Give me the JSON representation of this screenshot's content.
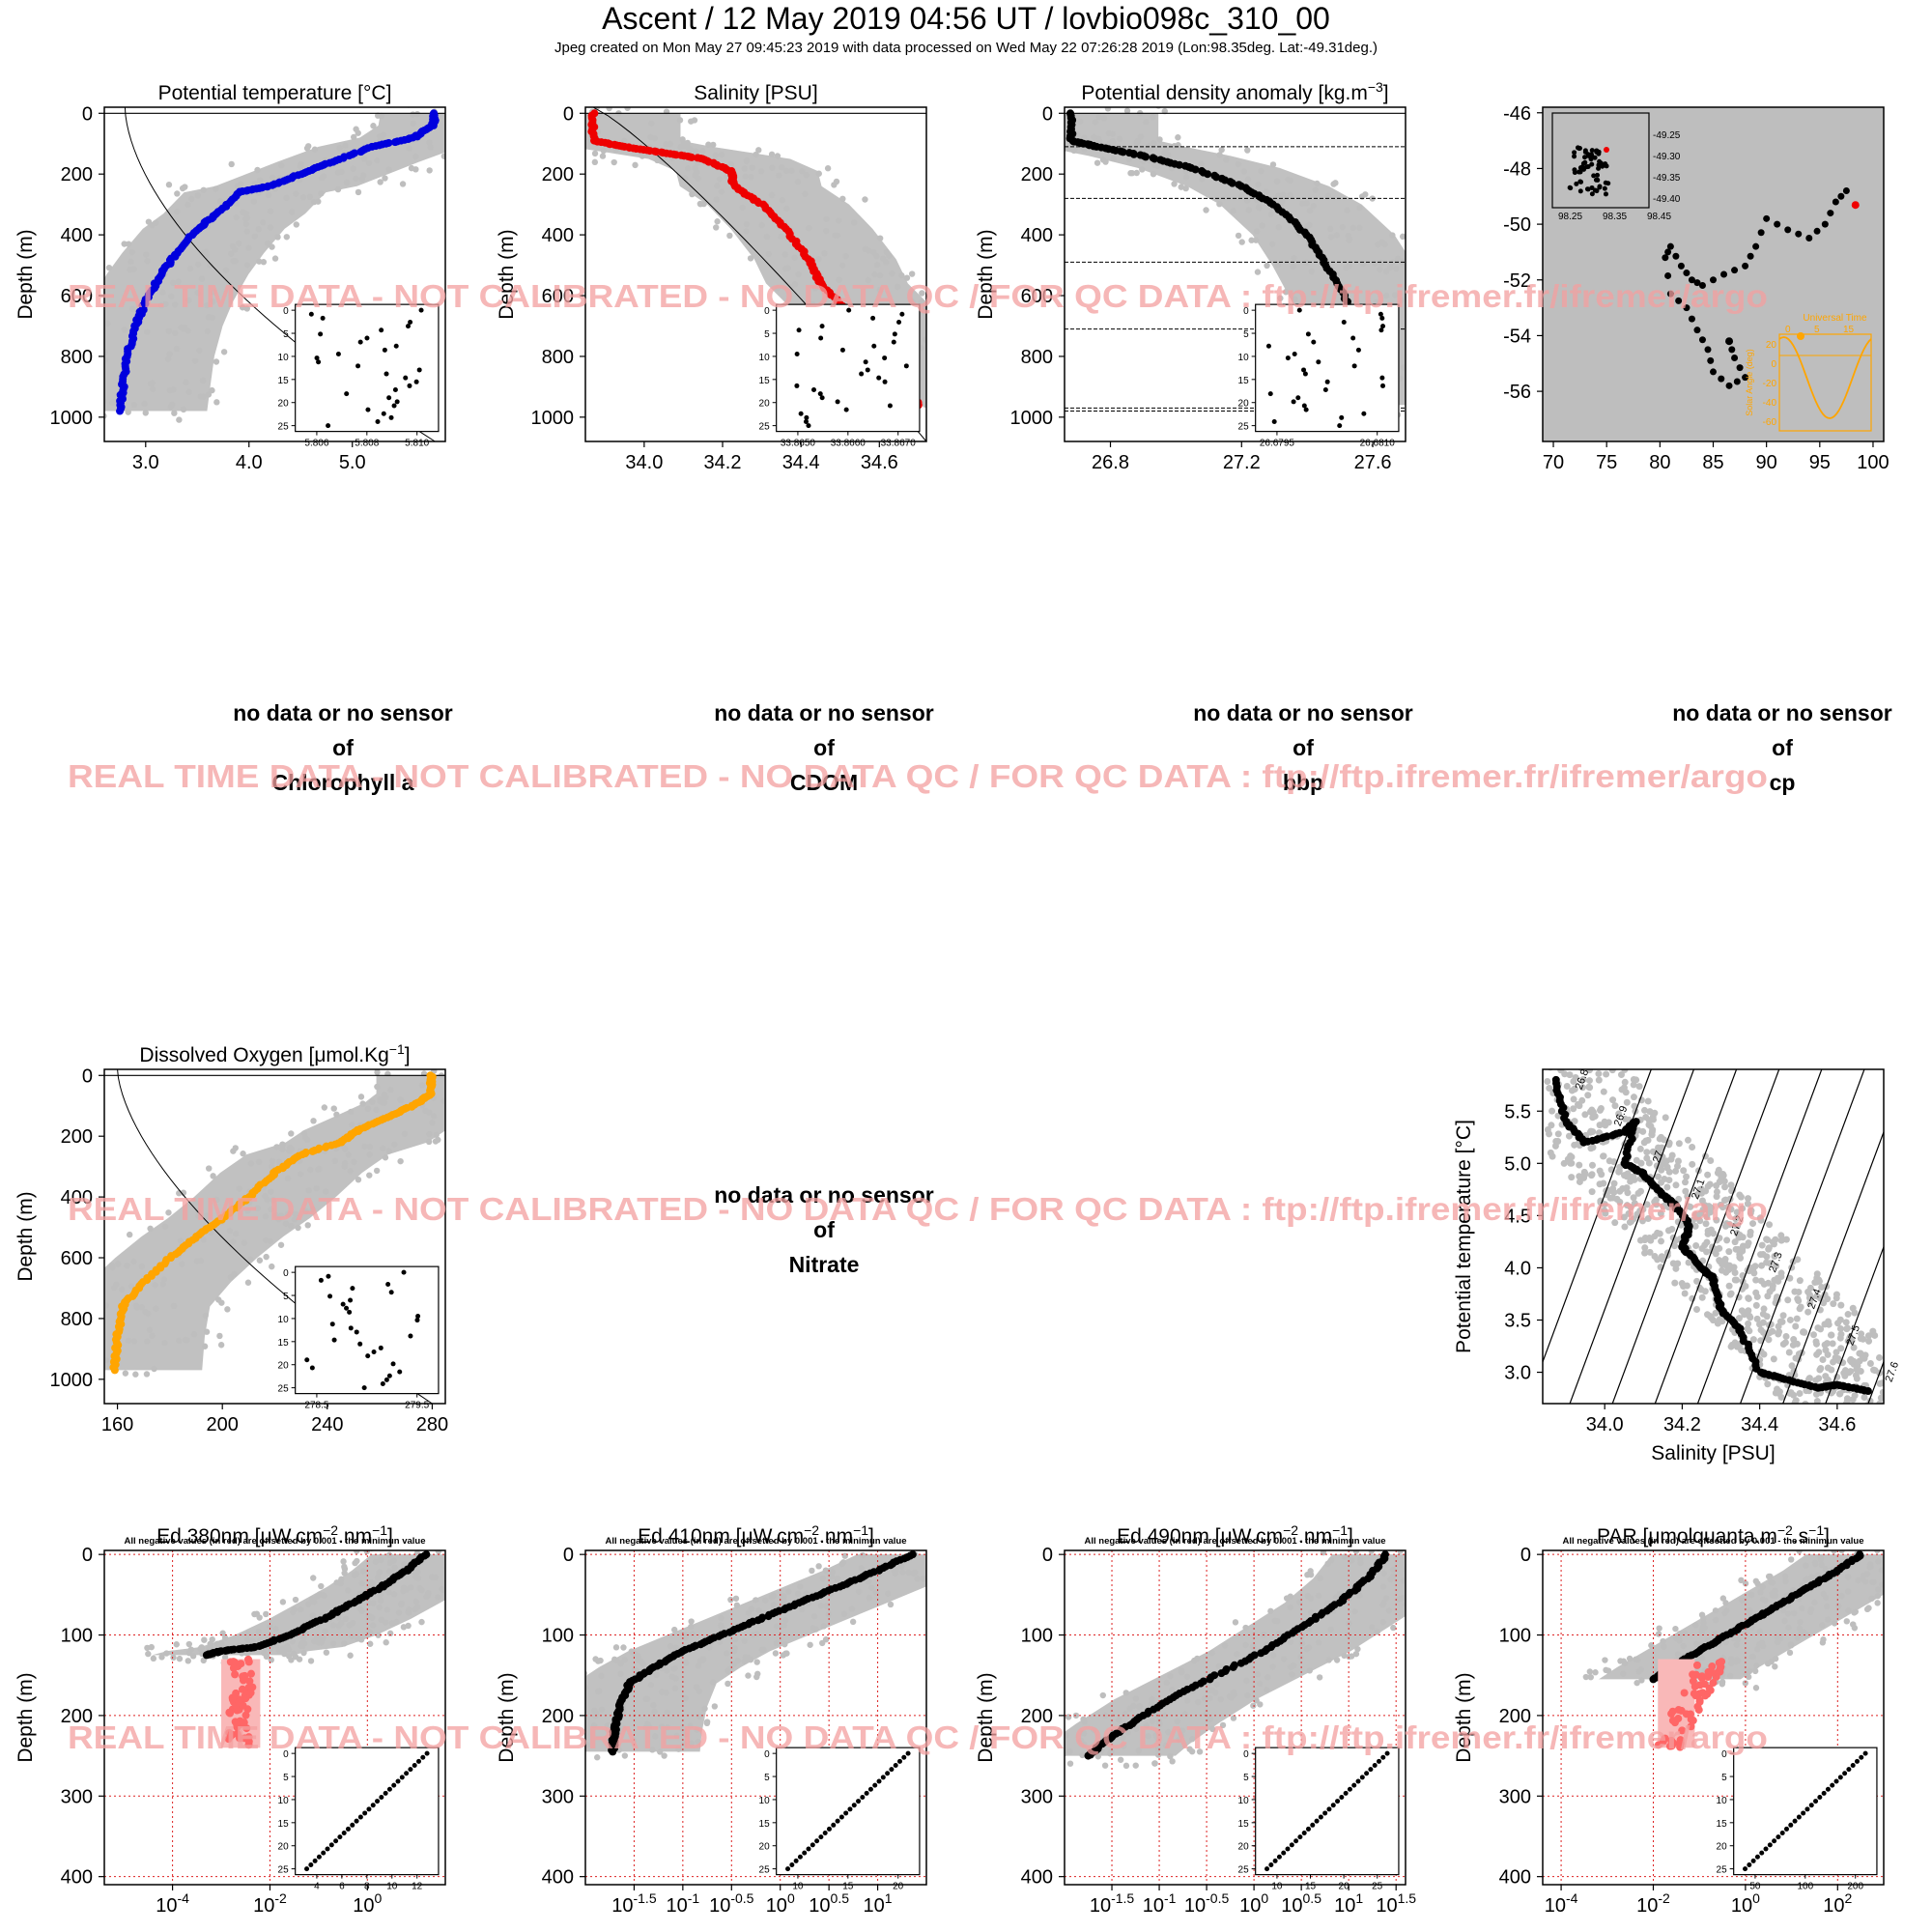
{
  "header": {
    "title": "Ascent / 12 May 2019 04:56 UT /  lovbio098c_310_00",
    "subtitle": "Jpeg created on Mon May 27 09:45:23 2019 with data processed on Wed May 22 07:26:28 2019 (Lon:98.35deg. Lat:-49.31deg.)"
  },
  "watermark": "REAL TIME DATA - NOT CALIBRATED - NO DATA QC   /  FOR QC DATA : ftp://ftp.ifremer.fr/ifremer/argo",
  "colors": {
    "background_panel": "#bebebe",
    "temperature": "#0000dd",
    "salinity": "#ee0000",
    "density": "#000000",
    "oxygen": "#ffa500",
    "negative": "#ff6666",
    "watermark": "#f4a0a0",
    "grid": "#dd2222"
  },
  "nodata": {
    "line1": "no data or no sensor",
    "line2": "of",
    "chlorophyll": "Chlorophyll a",
    "cdom": "CDOM",
    "bbp": "bbp",
    "cp": "cp",
    "nitrate": "Nitrate"
  },
  "chart_data": [
    {
      "id": "temperature",
      "type": "scatter",
      "title": "Potential temperature [°C]",
      "ylabel": "Depth (m)",
      "xlim": [
        2.6,
        5.9
      ],
      "ylim": [
        1080,
        -20
      ],
      "xticks": [
        "3.0",
        "4.0",
        "5.0"
      ],
      "xtick_values": [
        3.0,
        4.0,
        5.0
      ],
      "yticks": [
        "0",
        "200",
        "400",
        "600",
        "800",
        "1000"
      ],
      "ytick_values": [
        0,
        200,
        400,
        600,
        800,
        1000
      ],
      "profile": [
        [
          5.8,
          0
        ],
        [
          5.78,
          40
        ],
        [
          5.6,
          80
        ],
        [
          5.2,
          110
        ],
        [
          4.8,
          160
        ],
        [
          4.5,
          200
        ],
        [
          4.2,
          240
        ],
        [
          3.9,
          260
        ],
        [
          3.7,
          330
        ],
        [
          3.5,
          380
        ],
        [
          3.3,
          460
        ],
        [
          3.15,
          530
        ],
        [
          3.0,
          620
        ],
        [
          2.9,
          700
        ],
        [
          2.82,
          800
        ],
        [
          2.78,
          900
        ],
        [
          2.75,
          980
        ]
      ],
      "inset": {
        "xticks": [
          "5.806",
          "5.808",
          "5.810"
        ],
        "yticks": [
          "0",
          "5",
          "10",
          "15",
          "20",
          "25"
        ]
      }
    },
    {
      "id": "salinity",
      "type": "scatter",
      "title": "Salinity [PSU]",
      "ylabel": "Depth (m)",
      "xlim": [
        33.85,
        34.72
      ],
      "ylim": [
        1080,
        -20
      ],
      "xticks": [
        "34.0",
        "34.2",
        "34.4",
        "34.6"
      ],
      "xtick_values": [
        34.0,
        34.2,
        34.4,
        34.6
      ],
      "yticks": [
        "0",
        "200",
        "400",
        "600",
        "800",
        "1000"
      ],
      "ytick_values": [
        0,
        200,
        400,
        600,
        800,
        1000
      ],
      "profile": [
        [
          33.87,
          0
        ],
        [
          33.87,
          90
        ],
        [
          33.95,
          110
        ],
        [
          34.05,
          130
        ],
        [
          34.15,
          150
        ],
        [
          34.22,
          190
        ],
        [
          34.23,
          240
        ],
        [
          34.3,
          300
        ],
        [
          34.36,
          380
        ],
        [
          34.42,
          480
        ],
        [
          34.45,
          560
        ],
        [
          34.52,
          650
        ],
        [
          34.58,
          760
        ],
        [
          34.64,
          860
        ],
        [
          34.7,
          960
        ]
      ],
      "inset": {
        "xticks": [
          "33.8650",
          "33.8660",
          "33.8670"
        ],
        "yticks": [
          "0",
          "5",
          "10",
          "15",
          "20",
          "25"
        ]
      }
    },
    {
      "id": "density",
      "type": "scatter",
      "title": "Potential density anomaly [kg.m",
      "title_sup": "−3",
      "title_end": "]",
      "ylabel": "Depth (m)",
      "xlim": [
        26.66,
        27.7
      ],
      "ylim": [
        1080,
        -20
      ],
      "xticks": [
        "26.8",
        "27.2",
        "27.6"
      ],
      "xtick_values": [
        26.8,
        27.2,
        27.6
      ],
      "yticks": [
        "0",
        "200",
        "400",
        "600",
        "800",
        "1000"
      ],
      "ytick_values": [
        0,
        200,
        400,
        600,
        800,
        1000
      ],
      "profile": [
        [
          26.68,
          0
        ],
        [
          26.68,
          90
        ],
        [
          26.76,
          110
        ],
        [
          26.9,
          140
        ],
        [
          27.05,
          180
        ],
        [
          27.2,
          240
        ],
        [
          27.3,
          300
        ],
        [
          27.4,
          400
        ],
        [
          27.46,
          500
        ],
        [
          27.52,
          620
        ],
        [
          27.57,
          740
        ],
        [
          27.6,
          850
        ],
        [
          27.64,
          960
        ]
      ],
      "hlines": [
        110,
        280,
        490,
        710,
        970,
        980
      ],
      "inset": {
        "xticks": [
          "26.6795",
          "26.6810"
        ],
        "yticks": [
          "0",
          "5",
          "10",
          "15",
          "20",
          "25"
        ]
      }
    },
    {
      "id": "trajectory",
      "type": "scatter",
      "title": "",
      "xlim": [
        69,
        101
      ],
      "ylim": [
        -57.8,
        -45.8
      ],
      "xticks": [
        "70",
        "75",
        "80",
        "85",
        "90",
        "95",
        "100"
      ],
      "xtick_values": [
        70,
        75,
        80,
        85,
        90,
        95,
        100
      ],
      "yticks": [
        "-46",
        "-48",
        "-50",
        "-52",
        "-54",
        "-56"
      ],
      "ytick_values": [
        -46,
        -48,
        -50,
        -52,
        -54,
        -56
      ],
      "track": [
        [
          97.5,
          -48.8
        ],
        [
          96.5,
          -49.2
        ],
        [
          95.5,
          -50.0
        ],
        [
          94,
          -50.5
        ],
        [
          92,
          -50.2
        ],
        [
          90,
          -49.8
        ],
        [
          89,
          -50.8
        ],
        [
          88,
          -51.5
        ],
        [
          86,
          -51.8
        ],
        [
          84,
          -52.2
        ],
        [
          83,
          -52.0
        ],
        [
          82,
          -51.5
        ],
        [
          81,
          -50.8
        ],
        [
          80.5,
          -51.2
        ],
        [
          81,
          -52.5
        ],
        [
          82.5,
          -53.0
        ],
        [
          83.5,
          -53.8
        ],
        [
          84.5,
          -54.5
        ],
        [
          85,
          -55.3
        ],
        [
          86.5,
          -55.8
        ],
        [
          88,
          -55.5
        ],
        [
          87,
          -54.8
        ],
        [
          86.5,
          -54.2
        ]
      ],
      "current": [
        98.35,
        -49.31
      ],
      "inset_map": {
        "yticks": [
          "-49.25",
          "-49.30",
          "-49.35",
          "-49.40"
        ],
        "xticks": [
          "98.25",
          "98.35",
          "98.45"
        ]
      },
      "inset_sun": {
        "title": "Universal Time",
        "xticks": [
          "0",
          "5",
          "15"
        ],
        "ylabel": "Solar Angle (deg)",
        "yticks": [
          "20",
          "0",
          "-20",
          "-40",
          "-60"
        ]
      }
    },
    {
      "id": "oxygen",
      "type": "scatter",
      "title": "Dissolved Oxygen [μmol.Kg",
      "title_sup": "−1",
      "title_end": "]",
      "ylabel": "Depth (m)",
      "xlim": [
        155,
        285
      ],
      "ylim": [
        1080,
        -20
      ],
      "xticks": [
        "160",
        "200",
        "240",
        "280"
      ],
      "xtick_values": [
        160,
        200,
        240,
        280
      ],
      "yticks": [
        "0",
        "200",
        "400",
        "600",
        "800",
        "1000"
      ],
      "ytick_values": [
        0,
        200,
        400,
        600,
        800,
        1000
      ],
      "profile": [
        [
          279.5,
          0
        ],
        [
          279.5,
          60
        ],
        [
          275,
          90
        ],
        [
          265,
          130
        ],
        [
          252,
          180
        ],
        [
          245,
          220
        ],
        [
          230,
          260
        ],
        [
          220,
          320
        ],
        [
          210,
          400
        ],
        [
          200,
          470
        ],
        [
          190,
          530
        ],
        [
          180,
          600
        ],
        [
          170,
          680
        ],
        [
          162,
          760
        ],
        [
          160,
          860
        ],
        [
          159,
          970
        ]
      ],
      "inset": {
        "xticks": [
          "278.5",
          "279.5"
        ],
        "yticks": [
          "0",
          "5",
          "10",
          "15",
          "20",
          "25"
        ]
      }
    },
    {
      "id": "ts",
      "type": "scatter",
      "title": "",
      "xlabel": "Salinity [PSU]",
      "ylabel": "Potential temperature [°C]",
      "xlim": [
        33.84,
        34.72
      ],
      "ylim": [
        2.7,
        5.9
      ],
      "xticks": [
        "34.0",
        "34.2",
        "34.4",
        "34.6"
      ],
      "xtick_values": [
        34.0,
        34.2,
        34.4,
        34.6
      ],
      "yticks": [
        "3.0",
        "3.5",
        "4.0",
        "4.5",
        "5.0",
        "5.5"
      ],
      "ytick_values": [
        3.0,
        3.5,
        4.0,
        4.5,
        5.0,
        5.5
      ],
      "isopycnal_labels": [
        "26.8",
        "26.9",
        "27",
        "27.1",
        "27.2",
        "27.3",
        "27.4",
        "27.5",
        "27.6"
      ],
      "profile": [
        [
          33.87,
          5.8
        ],
        [
          33.9,
          5.4
        ],
        [
          33.95,
          5.2
        ],
        [
          34.05,
          5.3
        ],
        [
          34.08,
          5.4
        ],
        [
          34.05,
          5.0
        ],
        [
          34.1,
          4.9
        ],
        [
          34.15,
          4.7
        ],
        [
          34.18,
          4.6
        ],
        [
          34.22,
          4.4
        ],
        [
          34.2,
          4.2
        ],
        [
          34.25,
          4.0
        ],
        [
          34.28,
          3.9
        ],
        [
          34.3,
          3.6
        ],
        [
          34.35,
          3.4
        ],
        [
          34.4,
          3.0
        ],
        [
          34.45,
          2.95
        ],
        [
          34.55,
          2.85
        ],
        [
          34.6,
          2.88
        ],
        [
          34.68,
          2.82
        ]
      ]
    },
    {
      "id": "ed380",
      "type": "scatter",
      "title": "Ed 380nm [μW.cm",
      "title_sup": "−2",
      "title_mid": ".nm",
      "title_sup2": "−1",
      "title_end": "]",
      "note": "All negative values (in red) are offsetted by 0.001 - the minimun value",
      "ylabel": "Depth (m)",
      "log": true,
      "xlim": [
        -5.4,
        1.6
      ],
      "ylim": [
        410,
        -5
      ],
      "xticks": [
        "10",
        "10",
        "10"
      ],
      "xtick_sups": [
        "-4",
        "-2",
        "0"
      ],
      "xtick_values": [
        -4,
        -2,
        0
      ],
      "yticks": [
        "0",
        "100",
        "200",
        "300",
        "400"
      ],
      "ytick_values": [
        0,
        100,
        200,
        300,
        400
      ],
      "profile": [
        [
          1.2,
          0
        ],
        [
          0.8,
          20
        ],
        [
          0.3,
          40
        ],
        [
          -0.3,
          60
        ],
        [
          -0.9,
          80
        ],
        [
          -1.6,
          100
        ],
        [
          -2.3,
          115
        ],
        [
          -3.0,
          120
        ],
        [
          -3.3,
          125
        ]
      ],
      "inset": {
        "xticks": [
          "4",
          "6",
          "8",
          "10",
          "12"
        ],
        "yticks": [
          "0",
          "5",
          "10",
          "15",
          "20",
          "25"
        ]
      }
    },
    {
      "id": "ed410",
      "type": "scatter",
      "title": "Ed 410nm [μW.cm",
      "title_sup": "−2",
      "title_mid": ".nm",
      "title_sup2": "−1",
      "title_end": "]",
      "note": "All negative values (in red) are offsetted by 0.001 - the minimun value",
      "ylabel": "Depth (m)",
      "log": true,
      "xlim": [
        -2.0,
        1.5
      ],
      "ylim": [
        410,
        -5
      ],
      "xticks": [
        "10",
        "10",
        "10",
        "10",
        "10",
        "10"
      ],
      "xtick_sups": [
        "-1.5",
        "-1",
        "-0.5",
        "0",
        "0.5",
        "1"
      ],
      "xtick_values": [
        -1.5,
        -1,
        -0.5,
        0,
        0.5,
        1
      ],
      "yticks": [
        "0",
        "100",
        "200",
        "300",
        "400"
      ],
      "ytick_values": [
        0,
        100,
        200,
        300,
        400
      ],
      "profile": [
        [
          1.35,
          0
        ],
        [
          1.0,
          20
        ],
        [
          0.6,
          40
        ],
        [
          0.2,
          60
        ],
        [
          -0.2,
          80
        ],
        [
          -0.6,
          100
        ],
        [
          -1.0,
          120
        ],
        [
          -1.3,
          140
        ],
        [
          -1.55,
          160
        ],
        [
          -1.65,
          190
        ],
        [
          -1.7,
          220
        ],
        [
          -1.72,
          245
        ]
      ],
      "inset": {
        "xticks": [
          "10",
          "15",
          "20"
        ],
        "yticks": [
          "0",
          "5",
          "10",
          "15",
          "20",
          "25"
        ]
      }
    },
    {
      "id": "ed490",
      "type": "scatter",
      "title": "Ed 490nm [μW.cm",
      "title_sup": "−2",
      "title_mid": ".nm",
      "title_sup2": "−1",
      "title_end": "]",
      "note": "All negative values (in red) are offsetted by 0.001 - the minimun value",
      "ylabel": "Depth (m)",
      "log": true,
      "xlim": [
        -2.0,
        1.6
      ],
      "ylim": [
        410,
        -5
      ],
      "xticks": [
        "10",
        "10",
        "10",
        "10",
        "10",
        "10",
        "10"
      ],
      "xtick_sups": [
        "-1.5",
        "-1",
        "-0.5",
        "0",
        "0.5",
        "1",
        "1.5"
      ],
      "xtick_values": [
        -1.5,
        -1,
        -0.5,
        0,
        0.5,
        1,
        1.5
      ],
      "yticks": [
        "0",
        "100",
        "200",
        "300",
        "400"
      ],
      "ytick_values": [
        0,
        100,
        200,
        300,
        400
      ],
      "profile": [
        [
          1.4,
          0
        ],
        [
          1.2,
          30
        ],
        [
          0.9,
          60
        ],
        [
          0.5,
          90
        ],
        [
          0.1,
          120
        ],
        [
          -0.4,
          150
        ],
        [
          -0.9,
          180
        ],
        [
          -1.3,
          210
        ],
        [
          -1.6,
          235
        ],
        [
          -1.75,
          250
        ]
      ],
      "inset": {
        "xticks": [
          "10",
          "15",
          "20",
          "25"
        ],
        "yticks": [
          "0",
          "5",
          "10",
          "15",
          "20",
          "25"
        ]
      }
    },
    {
      "id": "par",
      "type": "scatter",
      "title": "PAR [μmolquanta.m",
      "title_sup": "−2",
      "title_mid": ".s",
      "title_sup2": "−1",
      "title_end": "]",
      "note": "All negative values (in red) are offsetted by 0.001 - the minimun value",
      "ylabel": "Depth (m)",
      "log": true,
      "xlim": [
        -4.4,
        3.0
      ],
      "ylim": [
        410,
        -5
      ],
      "xticks": [
        "10",
        "10",
        "10",
        "10"
      ],
      "xtick_sups": [
        "-4",
        "-2",
        "0",
        "2"
      ],
      "xtick_values": [
        -4,
        -2,
        0,
        2
      ],
      "yticks": [
        "0",
        "100",
        "200",
        "300",
        "400"
      ],
      "ytick_values": [
        0,
        100,
        200,
        300,
        400
      ],
      "profile": [
        [
          2.5,
          0
        ],
        [
          2.0,
          20
        ],
        [
          1.4,
          40
        ],
        [
          0.8,
          60
        ],
        [
          0.2,
          80
        ],
        [
          -0.4,
          100
        ],
        [
          -1.0,
          120
        ],
        [
          -1.6,
          140
        ],
        [
          -2.0,
          155
        ]
      ],
      "inset": {
        "xticks": [
          "50",
          "100",
          "200"
        ],
        "yticks": [
          "0",
          "5",
          "10",
          "15",
          "20",
          "25"
        ]
      }
    }
  ]
}
